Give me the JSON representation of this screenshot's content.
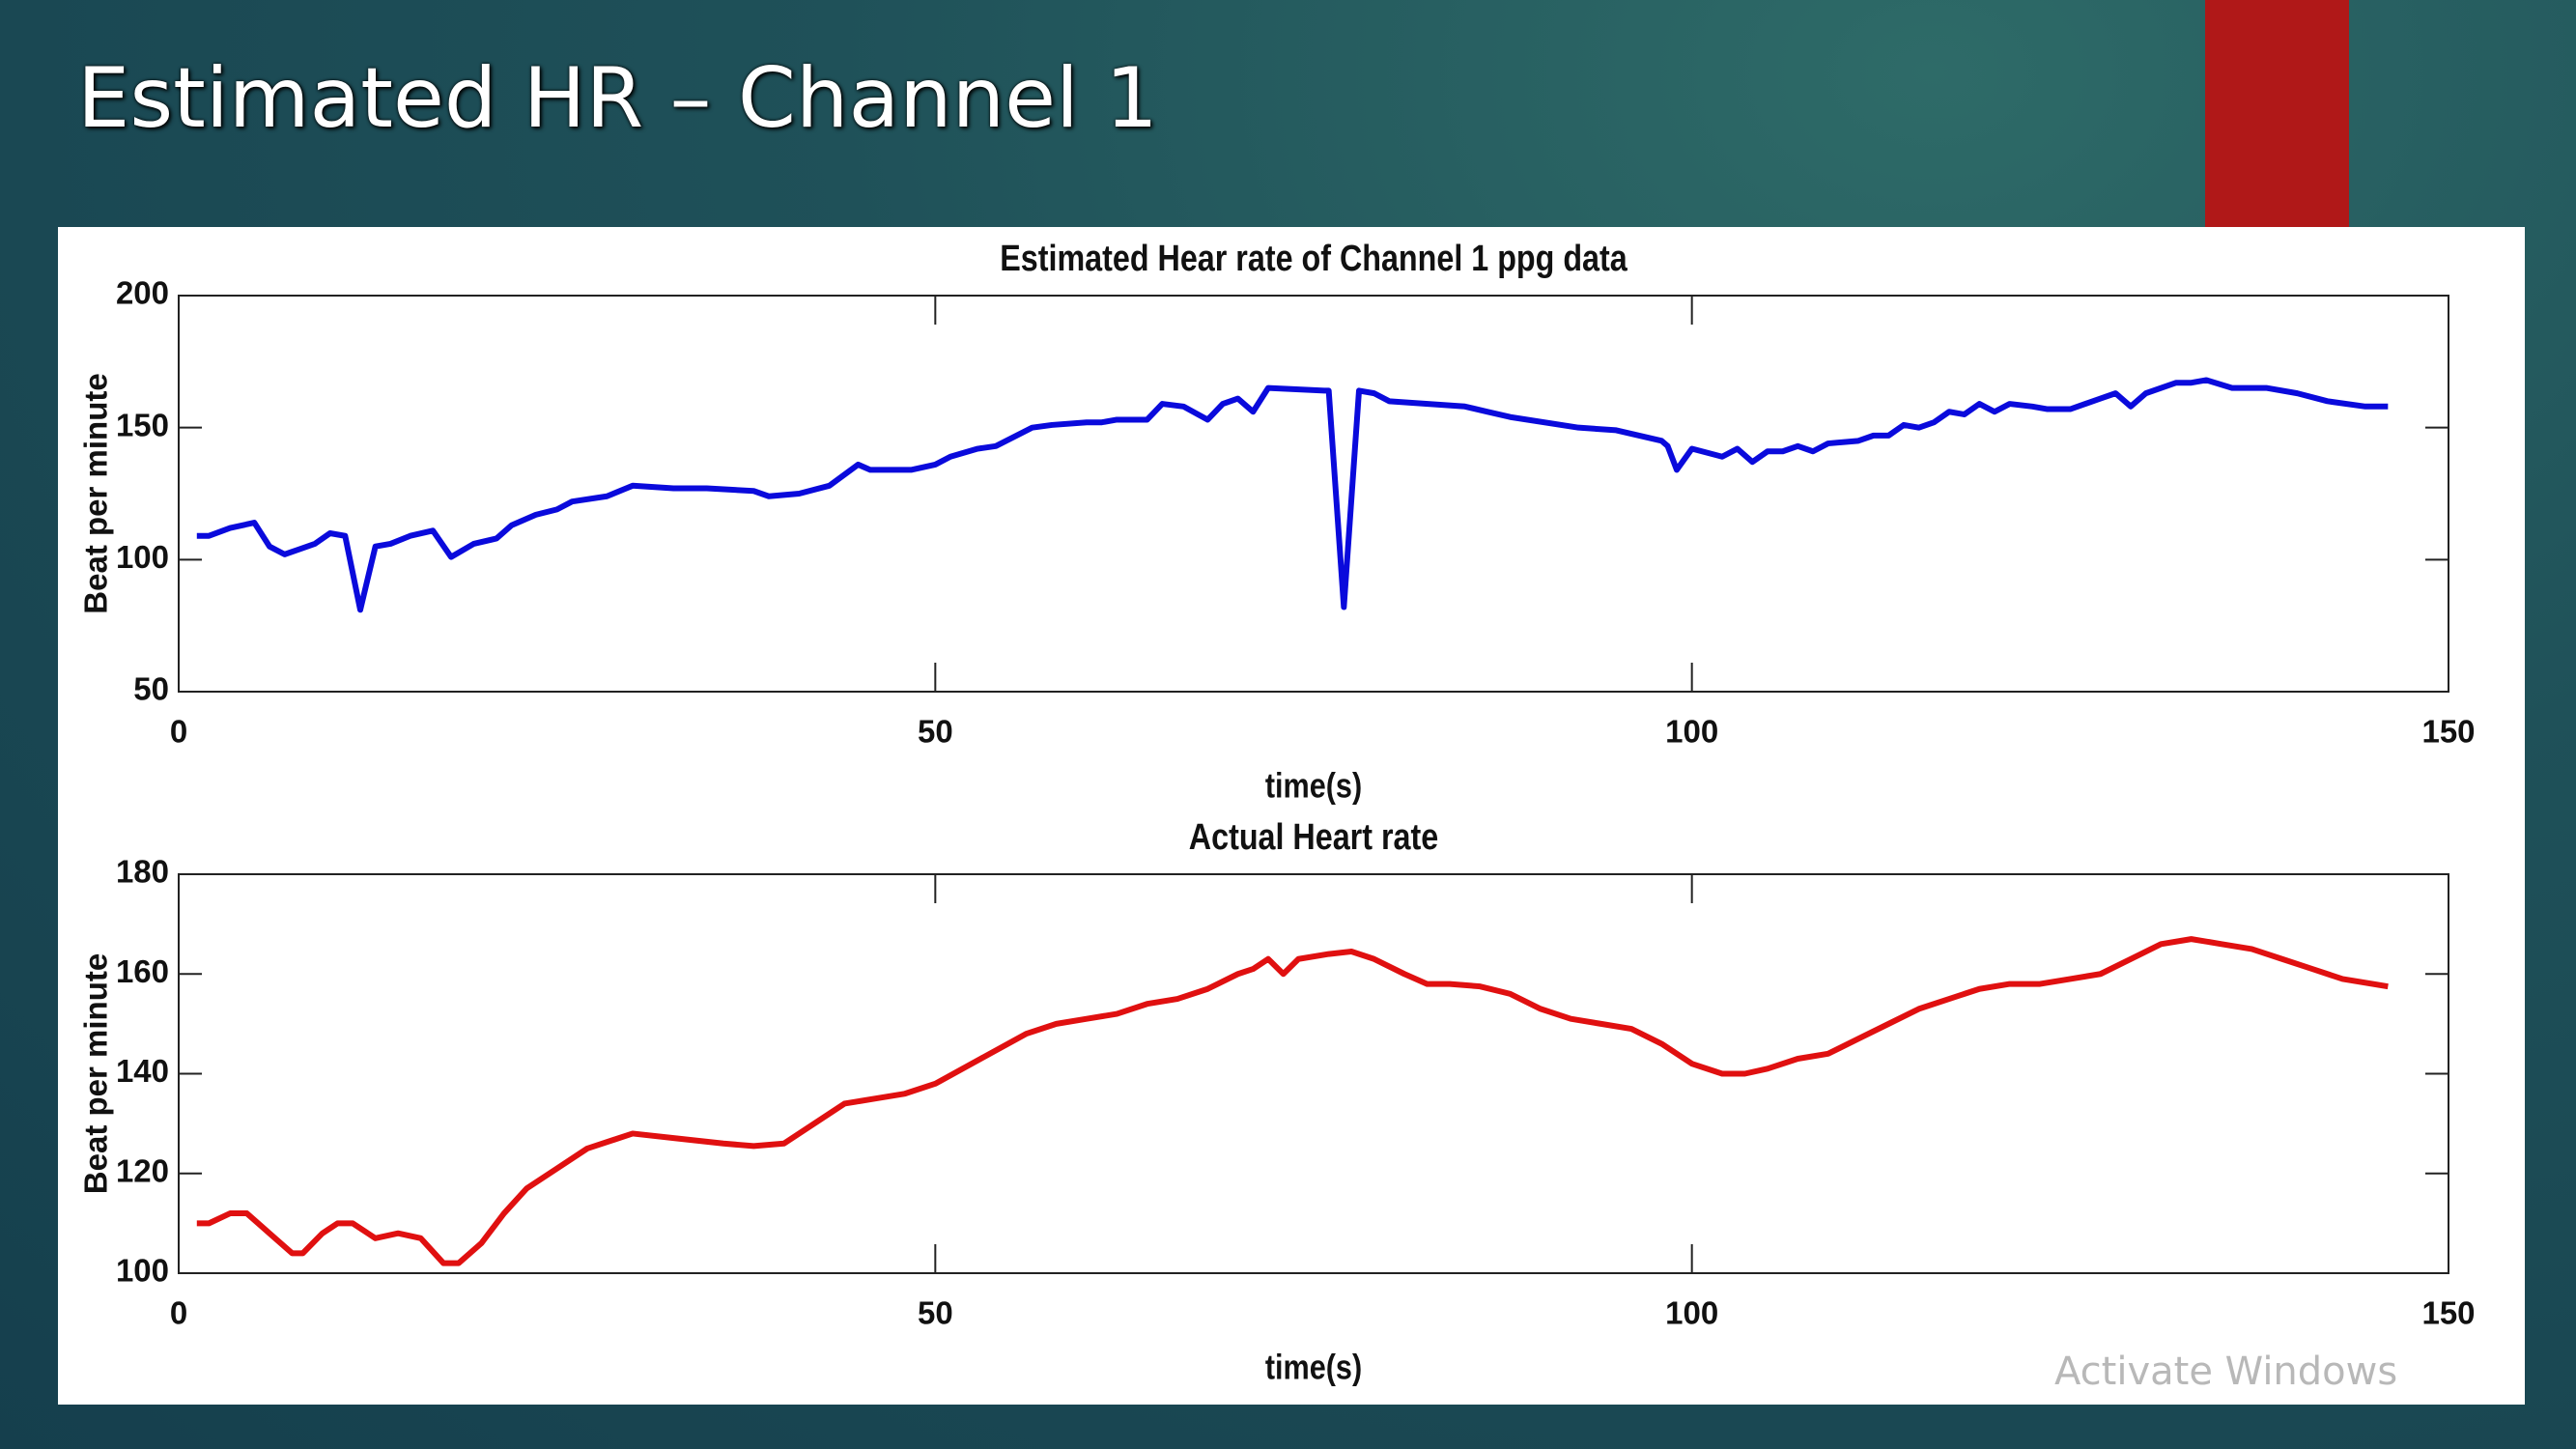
{
  "title": "Estimated HR – Channel 1",
  "watermark": "Activate Windows",
  "chart_data": [
    {
      "type": "line",
      "title": "Estimated Hear rate of Channel 1 ppg data",
      "xlabel": "time(s)",
      "ylabel": "Beat per minute",
      "xlim": [
        0,
        150
      ],
      "xticks": [
        0,
        50,
        100,
        150
      ],
      "ylim": [
        50,
        200
      ],
      "yticks": [
        50,
        100,
        150,
        200
      ],
      "grid": false,
      "series": [
        {
          "name": "Estimated",
          "color": "#0a0adc",
          "x": [
            1.2,
            2,
            3.4,
            5,
            6,
            7,
            8,
            9,
            10,
            11,
            12,
            13,
            14,
            15.3,
            16.8,
            18,
            19.5,
            21,
            22,
            23.6,
            25,
            26,
            28.3,
            30,
            32.7,
            34.9,
            38,
            39,
            41,
            43,
            44.9,
            45.7,
            48.4,
            50,
            51,
            52.8,
            54,
            56.4,
            57.7,
            60,
            61,
            62,
            64,
            65,
            66.4,
            68,
            69,
            70,
            71,
            72,
            75.7,
            76,
            77,
            78,
            79,
            80,
            85,
            86.5,
            88,
            92.5,
            95,
            98,
            98.4,
            99,
            100,
            102,
            103,
            104,
            105,
            106,
            107,
            108,
            109,
            111,
            112,
            113,
            114,
            115,
            116,
            117,
            118,
            119,
            120,
            121,
            122.5,
            123.5,
            125,
            127,
            128,
            129,
            130,
            132,
            133,
            134,
            135.7,
            138,
            140,
            142,
            144.5,
            146
          ],
          "values": [
            109,
            109,
            112,
            114,
            105,
            102,
            104,
            106,
            110,
            109,
            81,
            105,
            106,
            109,
            111,
            101,
            106,
            108,
            113,
            117,
            119,
            122,
            124,
            128,
            127,
            127,
            126,
            124,
            125,
            128,
            136,
            134,
            134,
            136,
            139,
            142,
            143,
            150,
            151,
            152,
            152,
            153,
            153,
            159,
            158,
            153,
            159,
            161,
            156,
            165,
            164,
            164,
            82,
            164,
            163,
            160,
            158,
            156,
            154,
            150,
            149,
            145,
            143,
            134,
            142,
            139,
            142,
            137,
            141,
            141,
            143,
            141,
            144,
            145,
            147,
            147,
            151,
            150,
            152,
            156,
            155,
            159,
            156,
            159,
            158,
            157,
            157,
            161,
            163,
            158,
            163,
            167,
            167,
            168,
            165,
            165,
            163,
            160,
            158,
            158
          ]
        }
      ]
    },
    {
      "type": "line",
      "title": "Actual Heart rate",
      "xlabel": "time(s)",
      "ylabel": "Beat per minute",
      "xlim": [
        0,
        150
      ],
      "xticks": [
        0,
        50,
        100,
        150
      ],
      "ylim": [
        100,
        180
      ],
      "yticks": [
        100,
        120,
        140,
        160,
        180
      ],
      "grid": false,
      "series": [
        {
          "name": "Actual",
          "color": "#e01010",
          "x": [
            1.2,
            2,
            3.4,
            4.5,
            6,
            7.5,
            8.2,
            9.5,
            10.5,
            11.5,
            13,
            14.5,
            16,
            17.5,
            18.5,
            20,
            21.5,
            23,
            25,
            27,
            29,
            30,
            33,
            36,
            38,
            40,
            42,
            44,
            46,
            48,
            50,
            53,
            56,
            58,
            60,
            62,
            64,
            66,
            68,
            70,
            71,
            72,
            73,
            74,
            76,
            77.5,
            79,
            81,
            82.5,
            84,
            86,
            88,
            90,
            92,
            94,
            96,
            98,
            100,
            102,
            103.5,
            105,
            107,
            109,
            111,
            113,
            115,
            117,
            119,
            121,
            123,
            125,
            127,
            129,
            131,
            133,
            135,
            137,
            139,
            141,
            143,
            146
          ],
          "values": [
            110,
            110,
            112,
            112,
            108,
            104,
            104,
            108,
            110,
            110,
            107,
            108,
            107,
            102,
            102,
            106,
            112,
            117,
            121,
            125,
            127,
            128,
            127,
            126,
            125.5,
            126,
            130,
            134,
            135,
            136,
            138,
            143,
            148,
            150,
            151,
            152,
            154,
            155,
            157,
            160,
            161,
            163,
            160,
            163,
            164,
            164.5,
            163,
            160,
            158,
            158,
            157.5,
            156,
            153,
            151,
            150,
            149,
            146,
            142,
            140,
            140,
            141,
            143,
            144,
            147,
            150,
            153,
            155,
            157,
            158,
            158,
            159,
            160,
            163,
            166,
            167,
            166,
            165,
            163,
            161,
            159,
            157.5
          ]
        }
      ]
    }
  ]
}
